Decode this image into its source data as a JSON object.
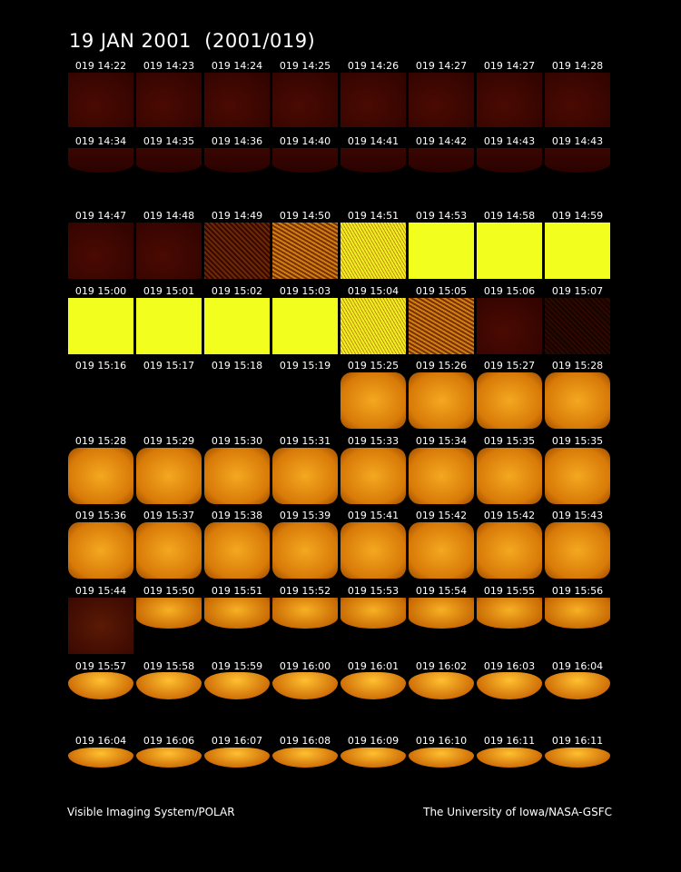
{
  "title": "19 JAN 2001  (2001/019)",
  "rows": [
    [
      "019 14:22",
      "019 14:23",
      "019 14:24",
      "019 14:25",
      "019 14:26",
      "019 14:27",
      "019 14:27",
      "019 14:28"
    ],
    [
      "019 14:34",
      "019 14:35",
      "019 14:36",
      "019 14:40",
      "019 14:41",
      "019 14:42",
      "019 14:43",
      "019 14:43"
    ],
    [
      "019 14:47",
      "019 14:48",
      "019 14:49",
      "019 14:50",
      "019 14:51",
      "019 14:53",
      "019 14:58",
      "019 14:59"
    ],
    [
      "019 15:00",
      "019 15:01",
      "019 15:02",
      "019 15:03",
      "019 15:04",
      "019 15:05",
      "019 15:06",
      "019 15:07"
    ],
    [
      "019 15:16",
      "019 15:17",
      "019 15:18",
      "019 15:19",
      "019 15:25",
      "019 15:26",
      "019 15:27",
      "019 15:28"
    ],
    [
      "019 15:28",
      "019 15:29",
      "019 15:30",
      "019 15:31",
      "019 15:33",
      "019 15:34",
      "019 15:35",
      "019 15:35"
    ],
    [
      "019 15:36",
      "019 15:37",
      "019 15:38",
      "019 15:39",
      "019 15:41",
      "019 15:42",
      "019 15:42",
      "019 15:43"
    ],
    [
      "019 15:44",
      "019 15:50",
      "019 15:51",
      "019 15:52",
      "019 15:53",
      "019 15:54",
      "019 15:55",
      "019 15:56"
    ],
    [
      "019 15:57",
      "019 15:58",
      "019 15:59",
      "019 16:00",
      "019 16:01",
      "019 16:02",
      "019 16:03",
      "019 16:04"
    ],
    [
      "019 16:04",
      "019 16:06",
      "019 16:07",
      "019 16:08",
      "019 16:09",
      "019 16:10",
      "019 16:11",
      "019 16:11"
    ]
  ],
  "footer": {
    "left": "Visible Imaging System/POLAR",
    "right": "The University of Iowa/NASA-GSFC"
  }
}
